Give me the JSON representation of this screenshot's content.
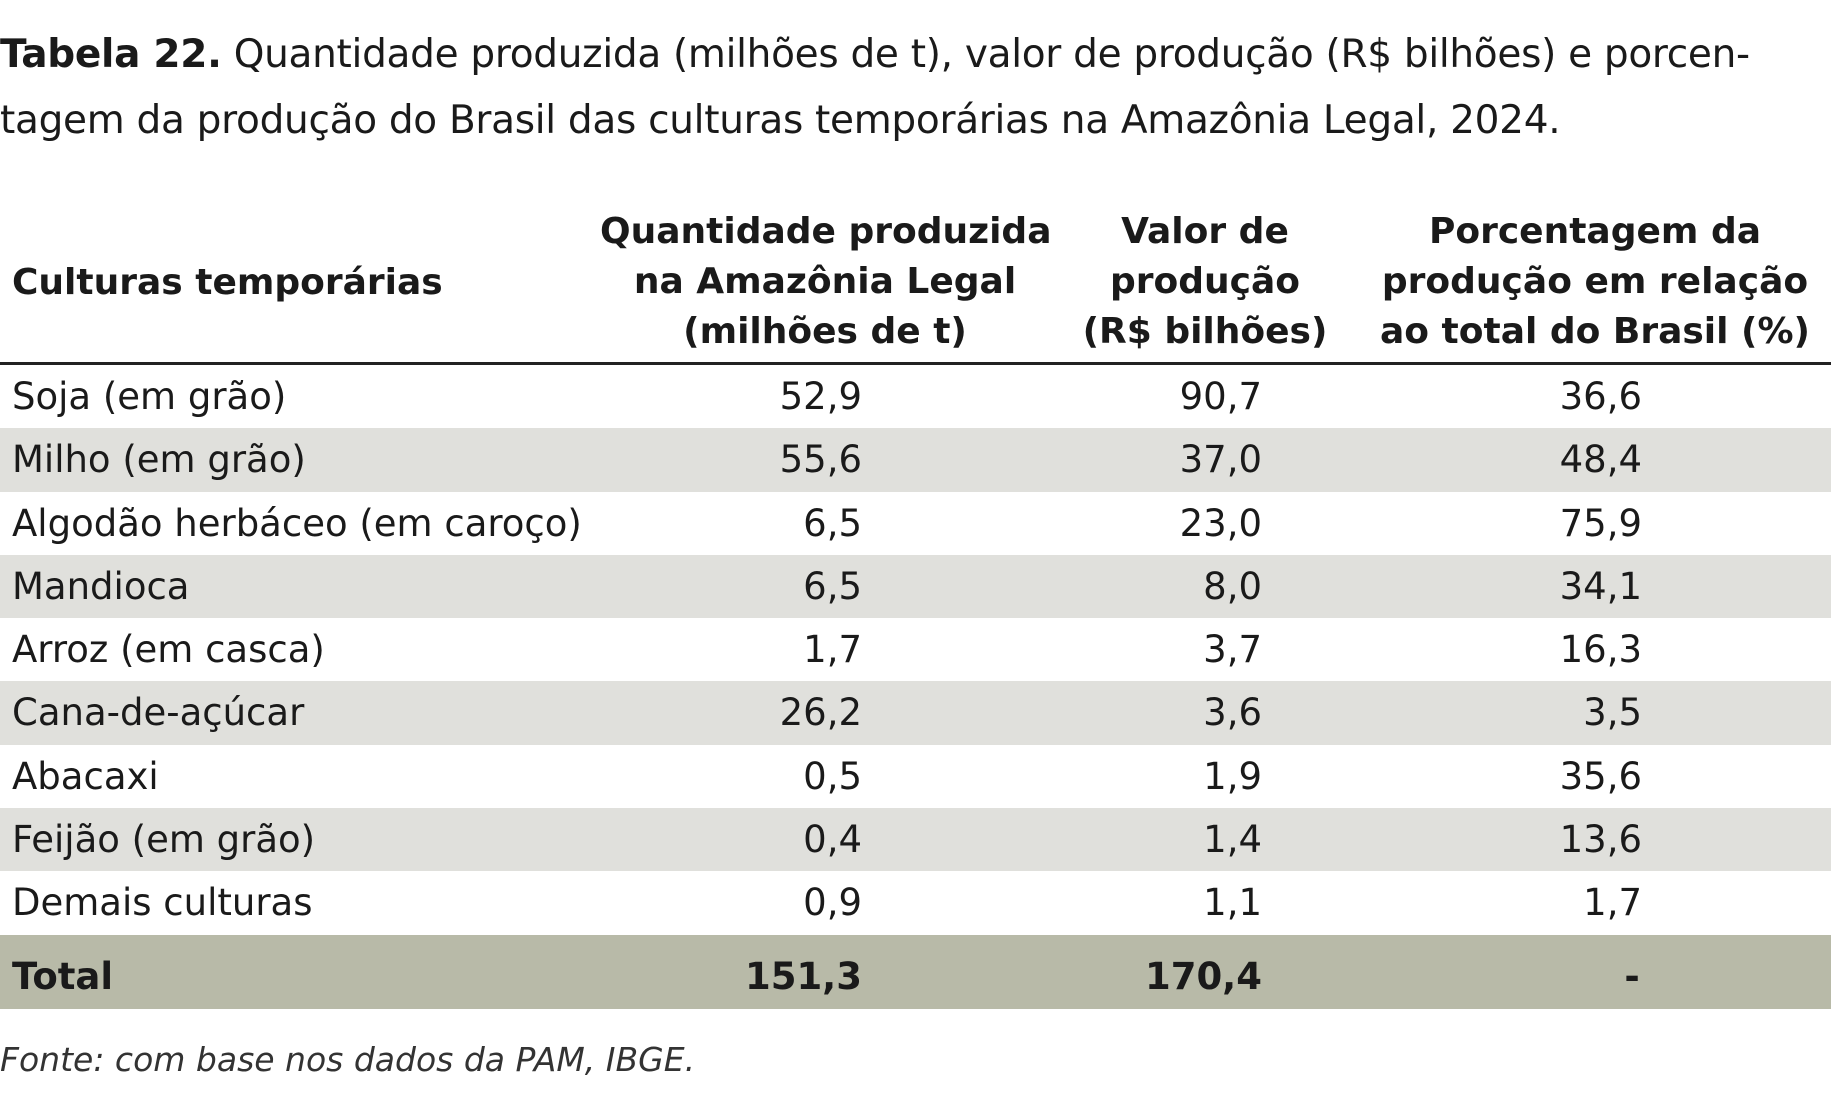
{
  "caption": {
    "lead": "Tabela 22.",
    "line1": " Quantidade produzida (milhões de t), valor de produção (R$ bilhões) e porcen-",
    "line2": "tagem da produção do Brasil das culturas temporárias na Amazônia Legal, 2024."
  },
  "table": {
    "headers": {
      "col0": "Culturas temporárias",
      "col1": [
        "Quantidade produzida",
        "na Amazônia Legal",
        "(milhões de t)"
      ],
      "col2": [
        "Valor de",
        "produção",
        "(R$ bilhões)"
      ],
      "col3": [
        "Porcentagem da",
        "produção em relação",
        "ao total do Brasil (%)"
      ]
    },
    "rows": [
      {
        "crop": "Soja (em grão)",
        "qty": "52,9",
        "value": "90,7",
        "pct": "36,6"
      },
      {
        "crop": "Milho (em grão)",
        "qty": "55,6",
        "value": "37,0",
        "pct": "48,4"
      },
      {
        "crop": "Algodão herbáceo (em caroço)",
        "qty": "6,5",
        "value": "23,0",
        "pct": "75,9"
      },
      {
        "crop": "Mandioca",
        "qty": "6,5",
        "value": "8,0",
        "pct": "34,1"
      },
      {
        "crop": "Arroz (em casca)",
        "qty": "1,7",
        "value": "3,7",
        "pct": "16,3"
      },
      {
        "crop": "Cana-de-açúcar",
        "qty": "26,2",
        "value": "3,6",
        "pct": "3,5"
      },
      {
        "crop": "Abacaxi",
        "qty": "0,5",
        "value": "1,9",
        "pct": "35,6"
      },
      {
        "crop": "Feijão (em grão)",
        "qty": "0,4",
        "value": "1,4",
        "pct": "13,6"
      },
      {
        "crop": "Demais culturas",
        "qty": "0,9",
        "value": "1,1",
        "pct": "1,7"
      }
    ],
    "total": {
      "label": "Total",
      "qty": "151,3",
      "value": "170,4",
      "pct": "-"
    }
  },
  "source": "Fonte: com base nos dados da PAM, IBGE.",
  "colors": {
    "shade_row": "#e0e0dc",
    "total_row": "#b8baa8",
    "rule": "#222222"
  }
}
